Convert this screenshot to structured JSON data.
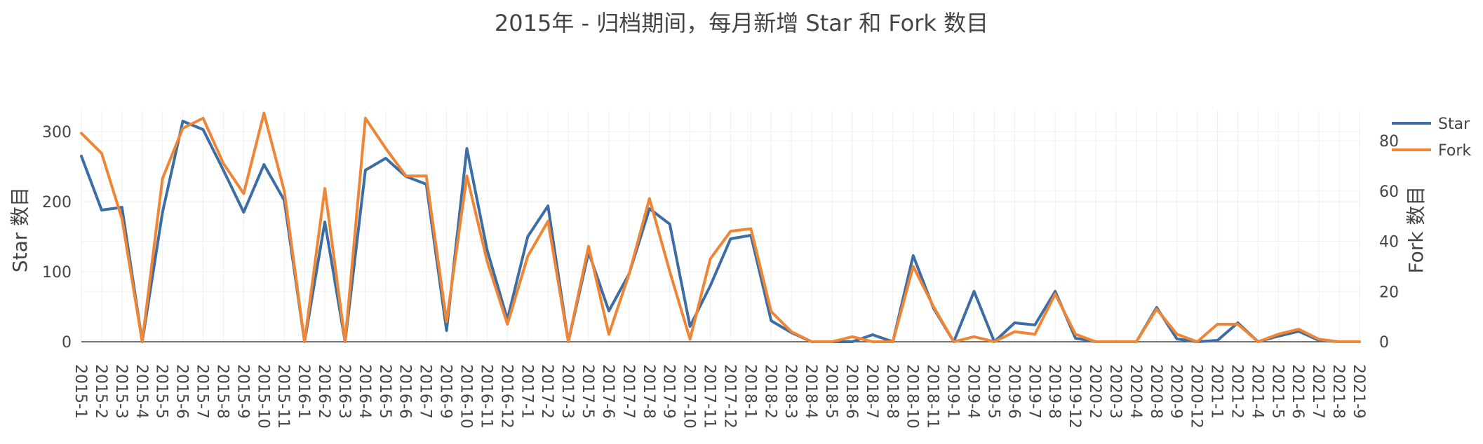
{
  "chart_data": {
    "type": "line",
    "title": "2015年 - 归档期间，每月新增 Star 和 Fork 数目",
    "ylabel_left": "Star 数目",
    "ylabel_right": "Fork 数目",
    "y_left_range": [
      0,
      330
    ],
    "y_right_range": [
      0,
      92
    ],
    "y_left_ticks": [
      0,
      100,
      200,
      300
    ],
    "y_right_ticks": [
      0,
      20,
      40,
      60,
      80
    ],
    "grid": true,
    "legend_position": "top-right",
    "categories": [
      "2015-1",
      "2015-2",
      "2015-3",
      "2015-4",
      "2015-5",
      "2015-6",
      "2015-7",
      "2015-8",
      "2015-9",
      "2015-10",
      "2015-11",
      "2016-1",
      "2016-2",
      "2016-3",
      "2016-4",
      "2016-5",
      "2016-6",
      "2016-7",
      "2016-9",
      "2016-10",
      "2016-11",
      "2016-12",
      "2017-1",
      "2017-2",
      "2017-3",
      "2017-5",
      "2017-6",
      "2017-7",
      "2017-8",
      "2017-9",
      "2017-10",
      "2017-11",
      "2017-12",
      "2018-1",
      "2018-2",
      "2018-3",
      "2018-4",
      "2018-5",
      "2018-6",
      "2018-7",
      "2018-8",
      "2018-10",
      "2018-11",
      "2019-1",
      "2019-4",
      "2019-5",
      "2019-6",
      "2019-7",
      "2019-8",
      "2019-12",
      "2020-2",
      "2020-3",
      "2020-4",
      "2020-8",
      "2020-9",
      "2020-12",
      "2021-1",
      "2021-2",
      "2021-4",
      "2021-5",
      "2021-6",
      "2021-7",
      "2021-8",
      "2021-9"
    ],
    "series": [
      {
        "name": "Star",
        "axis": "left",
        "color": "#3c6ea5",
        "values": [
          265,
          188,
          192,
          0,
          185,
          315,
          303,
          245,
          185,
          253,
          202,
          0,
          171,
          0,
          245,
          262,
          236,
          225,
          16,
          276,
          131,
          32,
          150,
          194,
          0,
          128,
          44,
          97,
          190,
          168,
          22,
          80,
          147,
          152,
          30,
          13,
          0,
          0,
          0,
          10,
          0,
          123,
          48,
          0,
          72,
          0,
          27,
          24,
          72,
          5,
          0,
          0,
          0,
          49,
          4,
          0,
          2,
          27,
          0,
          8,
          15,
          2,
          0,
          0
        ]
      },
      {
        "name": "Fork",
        "axis": "right",
        "color": "#ef8636",
        "values": [
          83,
          75,
          49,
          0,
          65,
          85,
          89,
          71,
          59,
          91,
          60,
          0,
          61,
          0,
          89,
          77,
          66,
          66,
          8,
          66,
          32,
          7,
          34,
          48,
          0,
          38,
          3,
          27,
          57,
          28,
          1,
          33,
          44,
          45,
          12,
          4,
          0,
          0,
          2,
          0,
          0,
          30,
          14,
          0,
          2,
          0,
          4,
          3,
          19,
          3,
          0,
          0,
          0,
          13,
          3,
          0,
          7,
          7,
          0,
          3,
          5,
          1,
          0,
          0
        ]
      }
    ]
  }
}
